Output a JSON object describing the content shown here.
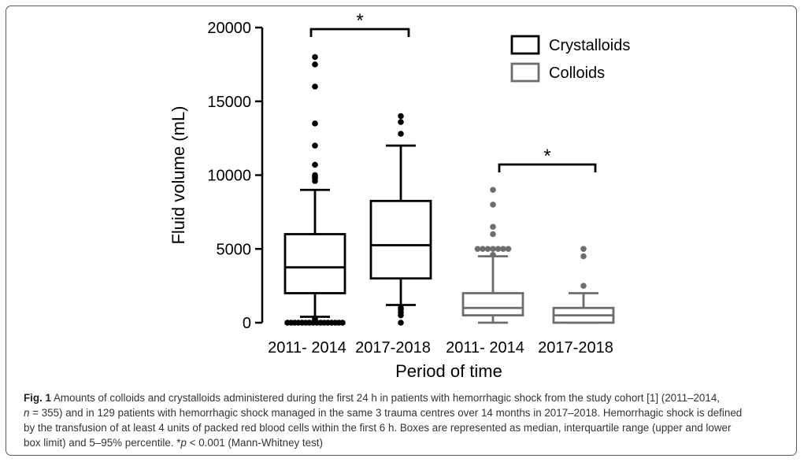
{
  "chart_data": {
    "type": "boxplot",
    "ylabel": "Fluid volume (mL)",
    "xlabel": "Period of time",
    "ylim": [
      0,
      20000
    ],
    "yticks": [
      0,
      5000,
      10000,
      15000,
      20000
    ],
    "categories": [
      "2011- 2014",
      "2017-2018",
      "2011- 2014",
      "2017-2018"
    ],
    "series": [
      {
        "name": "Crystalloids",
        "color": "#000000",
        "boxes": [
          {
            "category": "2011- 2014",
            "whisker_low": 400,
            "q1": 2000,
            "median": 3750,
            "q3": 6000,
            "whisker_high": 9000,
            "outliers": [
              0,
              0,
              0,
              0,
              0,
              0,
              0,
              0,
              0,
              0,
              0,
              0,
              0,
              0,
              0,
              0,
              200,
              300,
              9600,
              9800,
              9900,
              10000,
              10700,
              12000,
              13500,
              16000,
              17500,
              18000
            ]
          },
          {
            "category": "2017-2018",
            "whisker_low": 1200,
            "q1": 3000,
            "median": 5250,
            "q3": 8250,
            "whisker_high": 12000,
            "outliers": [
              0,
              500,
              700,
              900,
              1000,
              12800,
              13600,
              14000
            ]
          }
        ]
      },
      {
        "name": "Colloids",
        "color": "#6d6d6d",
        "boxes": [
          {
            "category": "2011- 2014",
            "whisker_low": 0,
            "q1": 500,
            "median": 1000,
            "q3": 2000,
            "whisker_high": 4500,
            "outliers": [
              4600,
              5000,
              5000,
              5000,
              5000,
              5000,
              5000,
              5000,
              6000,
              6500,
              8000,
              9000
            ]
          },
          {
            "category": "2017-2018",
            "whisker_low": 0,
            "q1": 0,
            "median": 500,
            "q3": 1000,
            "whisker_high": 2000,
            "outliers": [
              2500,
              4500,
              5000
            ]
          }
        ]
      }
    ],
    "legend": {
      "position": "top-right",
      "entries": [
        "Crystalloids",
        "Colloids"
      ]
    },
    "annotations": [
      {
        "text": "*",
        "between": [
          "2011- 2014",
          "2017-2018"
        ],
        "series": "Crystalloids",
        "at": 20000
      },
      {
        "text": "*",
        "between": [
          "2011- 2014",
          "2017-2018"
        ],
        "series": "Colloids",
        "at": 10000
      }
    ]
  },
  "caption": {
    "label": "Fig. 1",
    "line1": " Amounts of colloids and crystalloids administered during the first 24 h in patients with hemorrhagic shock from the study cohort [1] (2011–2014,",
    "line2_n": "n",
    "line2": " = 355) and in 129 patients with hemorrhagic shock managed in the same 3 trauma centres over 14 months in 2017–2018. Hemorrhagic shock is defined",
    "line3": "by the transfusion of at least 4 units of packed red blood cells within the first 6 h. Boxes are represented as median, interquartile range (upper and lower",
    "line4_a": "box limit) and 5–95% percentile. *",
    "line4_p": "p",
    "line4_b": " < 0.001 (Mann-Whitney test)"
  }
}
